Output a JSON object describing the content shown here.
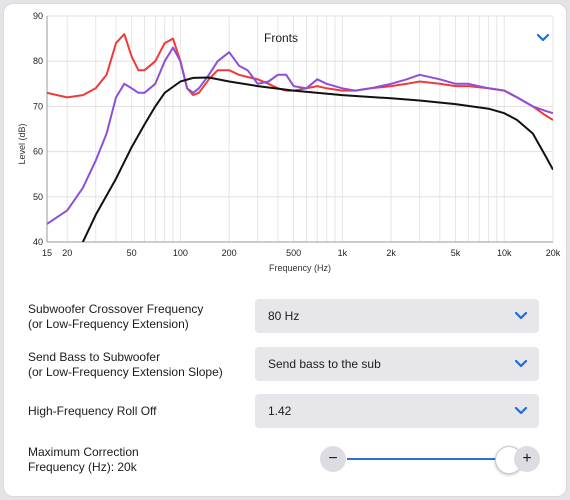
{
  "chart": {
    "title_dropdown": "Fronts",
    "title_icon": "chevron-down-icon",
    "ylabel": "Level (dB)",
    "xlabel": "Frequency (Hz)",
    "accent_color": "#1a6ee0"
  },
  "chart_data": {
    "type": "line",
    "title": "Fronts",
    "xlabel": "Frequency (Hz)",
    "ylabel": "Level (dB)",
    "xscale": "log",
    "xlim": [
      15,
      20000
    ],
    "ylim": [
      40,
      90
    ],
    "grid": true,
    "x_tick_labels": [
      "15",
      "20",
      "50",
      "100",
      "200",
      "500",
      "1k",
      "2k",
      "5k",
      "10k",
      "20k"
    ],
    "y_tick_labels": [
      "40",
      "50",
      "60",
      "70",
      "80",
      "90"
    ],
    "series": [
      {
        "color": "#f03a3a",
        "x": [
          15,
          20,
          25,
          30,
          35,
          40,
          45,
          50,
          55,
          60,
          70,
          80,
          90,
          100,
          110,
          120,
          130,
          150,
          170,
          200,
          230,
          260,
          300,
          350,
          400,
          450,
          500,
          600,
          700,
          800,
          1000,
          1200,
          1500,
          2000,
          2500,
          3000,
          4000,
          5000,
          6000,
          8000,
          10000,
          12000,
          15000,
          18000,
          20000
        ],
        "values": [
          73,
          72,
          72.5,
          74,
          77,
          84,
          86,
          81,
          78,
          78,
          80,
          84,
          85,
          80,
          74,
          72.5,
          73,
          76,
          78,
          78,
          77,
          76.5,
          76,
          75,
          74,
          73.5,
          73.5,
          74,
          74.5,
          74,
          73.5,
          73.5,
          74,
          74.5,
          75,
          75.5,
          75,
          74.5,
          74.5,
          74,
          73.5,
          72,
          70,
          68,
          67
        ]
      },
      {
        "color": "#8e4fd8",
        "x": [
          15,
          20,
          25,
          30,
          35,
          40,
          45,
          50,
          55,
          60,
          70,
          80,
          90,
          100,
          110,
          120,
          130,
          150,
          170,
          200,
          230,
          260,
          300,
          350,
          400,
          450,
          500,
          600,
          700,
          800,
          1000,
          1200,
          1500,
          2000,
          2500,
          3000,
          4000,
          5000,
          6000,
          8000,
          10000,
          12000,
          15000,
          18000,
          20000
        ],
        "values": [
          44,
          47,
          52,
          58,
          64,
          72,
          75,
          74,
          73,
          73,
          75,
          80,
          83,
          80,
          74,
          73,
          74,
          77,
          80,
          82,
          79,
          78,
          75,
          75.5,
          77,
          77,
          74.5,
          74,
          76,
          75,
          74,
          73.5,
          74,
          75,
          76,
          77,
          76,
          75,
          75,
          74,
          73.5,
          72,
          70,
          69,
          68.5
        ]
      },
      {
        "color": "#111111",
        "x": [
          20,
          25,
          30,
          40,
          50,
          60,
          70,
          80,
          100,
          120,
          150,
          200,
          300,
          500,
          1000,
          2000,
          3000,
          5000,
          8000,
          10000,
          12000,
          15000,
          18000,
          20000
        ],
        "values": [
          33,
          40,
          46,
          54,
          61,
          66,
          70,
          73,
          75.5,
          76.3,
          76.4,
          75.5,
          74.5,
          73.5,
          72.5,
          71.8,
          71.3,
          70.5,
          69.5,
          68.5,
          67,
          64,
          59,
          56
        ]
      }
    ]
  },
  "settings": {
    "crossover_label_1": "Subwoofer Crossover Frequency",
    "crossover_label_2": "(or Low-Frequency Extension)",
    "crossover_value": "80 Hz",
    "bass_label_1": "Send Bass to Subwoofer",
    "bass_label_2": "(or Low-Frequency Extension Slope)",
    "bass_value": "Send bass to the sub",
    "rolloff_label": "High-Frequency Roll Off",
    "rolloff_value": "1.42",
    "maxcorr_label_1": "Maximum Correction",
    "maxcorr_label_2": "Frequency (Hz): 20k",
    "minus": "−",
    "plus": "+",
    "slider_value": 1.0
  }
}
